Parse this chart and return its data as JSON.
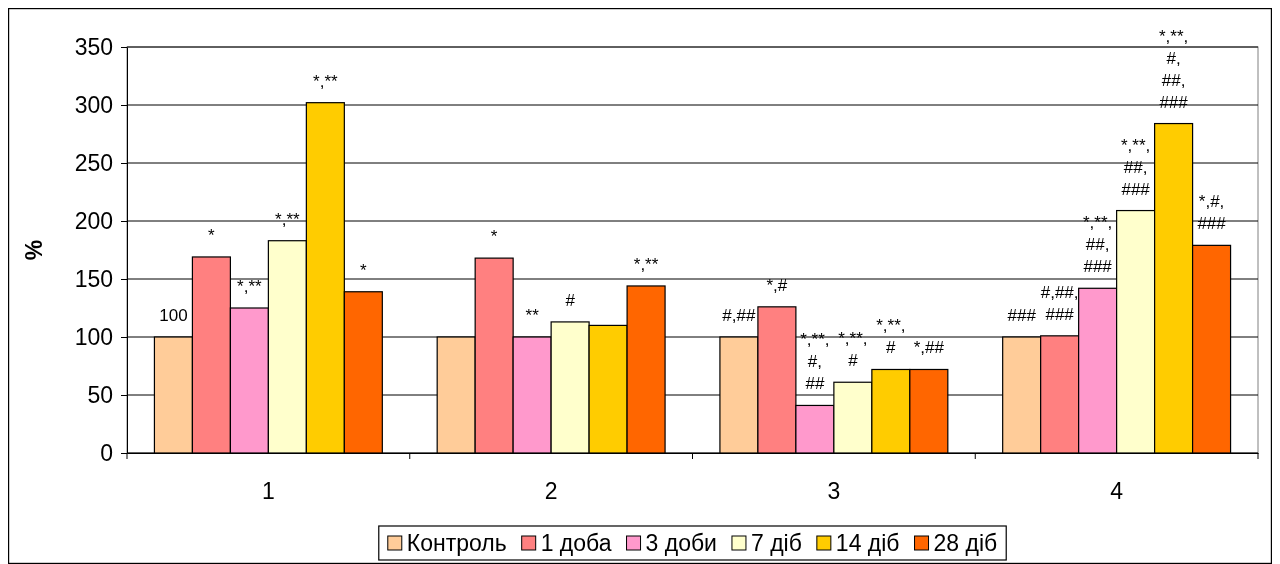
{
  "chart_data": {
    "type": "bar",
    "ylabel": "%",
    "categories": [
      "1",
      "2",
      "3",
      "4"
    ],
    "series": [
      {
        "name": "Контроль",
        "color": "#ffcc99",
        "values": [
          100,
          100,
          100,
          100
        ],
        "value_labels": [
          "100",
          null,
          "#,##",
          "###"
        ]
      },
      {
        "name": "1 доба",
        "color": "#ff8080",
        "values": [
          169,
          168,
          126,
          101
        ],
        "value_labels": [
          "*",
          "*",
          "*,#",
          "#,##,\n###"
        ]
      },
      {
        "name": "3 доби",
        "color": "#ff99cc",
        "values": [
          125,
          100,
          41,
          142
        ],
        "value_labels": [
          "*,**",
          "**",
          "*,**,\n#,\n##",
          "*,**,\n##,\n###"
        ]
      },
      {
        "name": "7 діб",
        "color": "#ffffcc",
        "values": [
          183,
          113,
          61,
          209
        ],
        "value_labels": [
          "*,**",
          "#",
          "*,**,\n#",
          "*,**,\n##,\n###"
        ]
      },
      {
        "name": "14 діб",
        "color": "#ffcc00",
        "values": [
          302,
          110,
          72,
          284
        ],
        "value_labels": [
          "*,**",
          null,
          "*,**,\n#",
          "*,**,\n#,\n##,\n###"
        ]
      },
      {
        "name": "28 діб",
        "color": "#ff6600",
        "values": [
          139,
          144,
          72,
          179
        ],
        "value_labels": [
          "*",
          "*,**",
          "*,##",
          "*,#,\n###"
        ]
      }
    ],
    "ylim": [
      0,
      350
    ],
    "yticks": [
      0,
      50,
      100,
      150,
      200,
      250,
      300,
      350
    ],
    "grid": "y",
    "legend": "bottom"
  }
}
